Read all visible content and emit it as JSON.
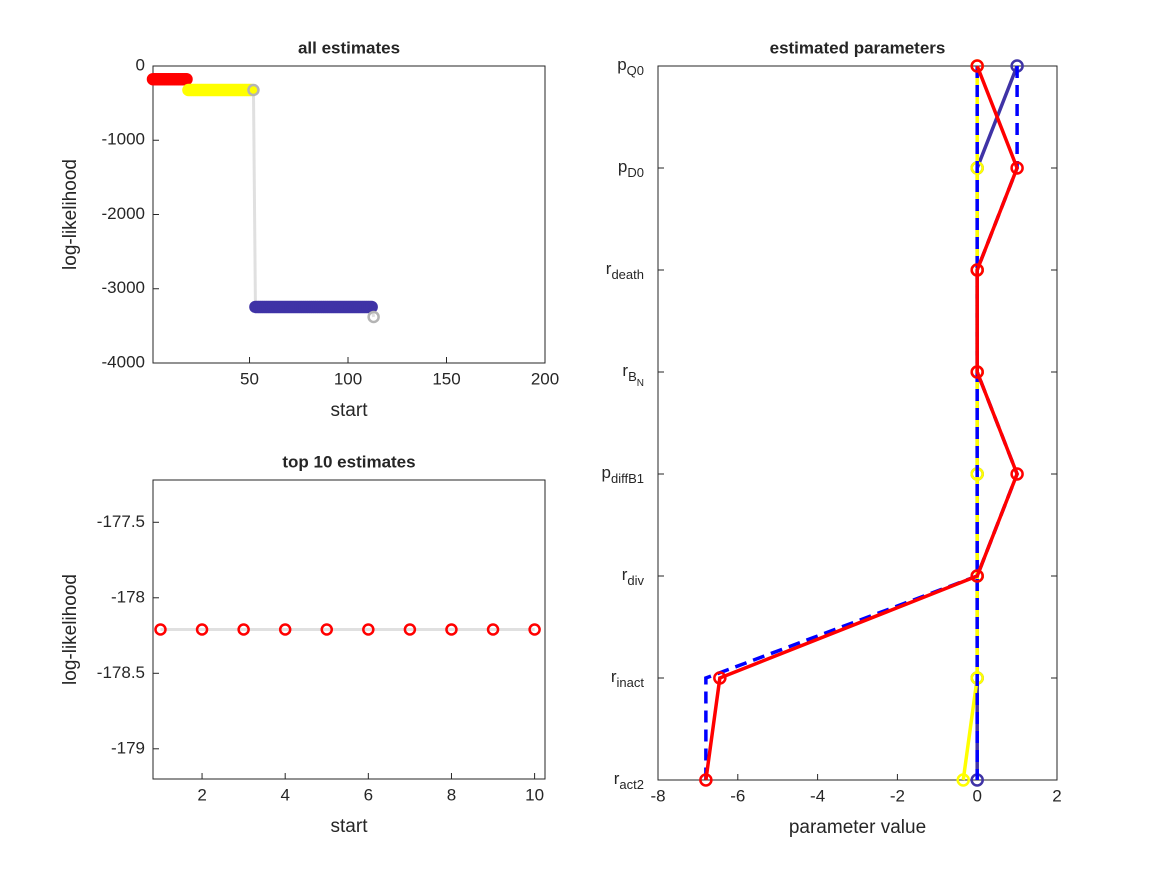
{
  "chart_data": [
    {
      "type": "line",
      "title": "all estimates",
      "xlabel": "start",
      "ylabel": "log-likelihood",
      "xlim": [
        1,
        200
      ],
      "ylim": [
        -4000,
        0
      ],
      "xticks": [
        50,
        100,
        150,
        200
      ],
      "yticks": [
        -4000,
        -3000,
        -2000,
        -1000,
        0
      ],
      "line_color": "#e0e0e0",
      "series": [
        {
          "color": "#ff0000",
          "x": [
            1,
            2,
            3,
            4,
            5,
            6,
            7,
            8,
            9,
            10,
            11,
            12,
            13,
            14,
            15,
            16,
            17,
            18
          ],
          "values": [
            -178.2,
            -178.2,
            -178.2,
            -178.2,
            -178.2,
            -178.2,
            -178.2,
            -178.2,
            -178.2,
            -178.2,
            -178.2,
            -178.2,
            -178.2,
            -178.2,
            -178.2,
            -178.2,
            -178.2,
            -178.2
          ]
        },
        {
          "color": "#ffff00",
          "x": [
            19,
            20,
            21,
            22,
            23,
            24,
            25,
            26,
            27,
            28,
            29,
            30,
            31,
            32,
            33,
            34,
            35,
            36,
            37,
            38,
            39,
            40,
            41,
            42,
            43,
            44,
            45,
            46,
            47,
            48,
            49,
            50,
            51
          ],
          "values": [
            -323,
            -323,
            -323,
            -323,
            -323,
            -323,
            -323,
            -323,
            -323,
            -323,
            -323,
            -323,
            -323,
            -323,
            -323,
            -323,
            -323,
            -323,
            -323,
            -323,
            -323,
            -323,
            -323,
            -323,
            -323,
            -323,
            -323,
            -323,
            -323,
            -323,
            -323,
            -323,
            -323
          ]
        },
        {
          "color": "#b4b4b4",
          "x": [
            52
          ],
          "values": [
            -323
          ]
        },
        {
          "color": "#3f33a6",
          "x": [
            53,
            54,
            55,
            56,
            57,
            58,
            59,
            60,
            61,
            62,
            63,
            64,
            65,
            66,
            67,
            68,
            69,
            70,
            71,
            72,
            73,
            74,
            75,
            76,
            77,
            78,
            79,
            80,
            81,
            82,
            83,
            84,
            85,
            86,
            87,
            88,
            89,
            90,
            91,
            92,
            93,
            94,
            95,
            96,
            97,
            98,
            99,
            100,
            101,
            102,
            103,
            104,
            105,
            106,
            107,
            108,
            109,
            110,
            111,
            112
          ],
          "values": [
            -3245,
            -3245,
            -3245,
            -3245,
            -3245,
            -3245,
            -3245,
            -3245,
            -3245,
            -3245,
            -3245,
            -3245,
            -3245,
            -3245,
            -3245,
            -3245,
            -3245,
            -3245,
            -3245,
            -3245,
            -3245,
            -3245,
            -3245,
            -3245,
            -3245,
            -3245,
            -3245,
            -3245,
            -3245,
            -3245,
            -3245,
            -3245,
            -3245,
            -3245,
            -3245,
            -3245,
            -3245,
            -3245,
            -3245,
            -3245,
            -3245,
            -3245,
            -3245,
            -3245,
            -3245,
            -3245,
            -3245,
            -3245,
            -3245,
            -3245,
            -3245,
            -3245,
            -3245,
            -3245,
            -3245,
            -3245,
            -3245,
            -3245,
            -3245,
            -3245
          ]
        },
        {
          "color": "#b4b4b4",
          "x": [
            113
          ],
          "values": [
            -3380
          ]
        }
      ]
    },
    {
      "type": "line",
      "title": "top 10 estimates",
      "xlabel": "start",
      "ylabel": "log-likelihood",
      "xlim": [
        0.82,
        10.25
      ],
      "ylim": [
        -179.2,
        -177.22
      ],
      "xticks": [
        2,
        4,
        6,
        8,
        10
      ],
      "yticks": [
        -179,
        -178.5,
        -178,
        -177.5
      ],
      "line_color": "#e0e0e0",
      "series": [
        {
          "color": "#ff0000",
          "x": [
            1,
            2,
            3,
            4,
            5,
            6,
            7,
            8,
            9,
            10
          ],
          "values": [
            -178.21,
            -178.21,
            -178.21,
            -178.21,
            -178.21,
            -178.21,
            -178.21,
            -178.21,
            -178.21,
            -178.21
          ]
        }
      ]
    },
    {
      "type": "line",
      "orientation": "horizontal",
      "title": "estimated parameters",
      "xlabel": "parameter value",
      "categories": [
        {
          "main": "p",
          "sub": "Q0"
        },
        {
          "main": "p",
          "sub": "D0"
        },
        {
          "main": "r",
          "sub": "death"
        },
        {
          "main": "r",
          "sub": "B",
          "subsub": "N"
        },
        {
          "main": "p",
          "sub": "diffB1"
        },
        {
          "main": "r",
          "sub": "div"
        },
        {
          "main": "r",
          "sub": "inact"
        },
        {
          "main": "r",
          "sub": "act2"
        }
      ],
      "xlim": [
        -8,
        2
      ],
      "xticks": [
        -8,
        -6,
        -4,
        -2,
        0,
        2
      ],
      "series": [
        {
          "color": "#3f33a6",
          "values": [
            1,
            0,
            0,
            0,
            0,
            0,
            0,
            0
          ],
          "marker": true
        },
        {
          "color": "#ffff00",
          "values": [
            0,
            0,
            0,
            0,
            0,
            0,
            0,
            -0.35
          ],
          "marker": true
        },
        {
          "color": "#0000ff",
          "values": [
            0,
            0,
            0,
            0,
            0,
            0,
            0,
            0
          ],
          "dashed": true
        },
        {
          "color": "#0000ff",
          "values": [
            1,
            1,
            0,
            0,
            1,
            0,
            -6.8,
            -6.8
          ],
          "dashed": true
        },
        {
          "color": "#ff0000",
          "values": [
            0,
            1,
            0,
            0,
            1,
            0,
            -6.45,
            -6.8
          ],
          "marker": true
        }
      ]
    }
  ]
}
